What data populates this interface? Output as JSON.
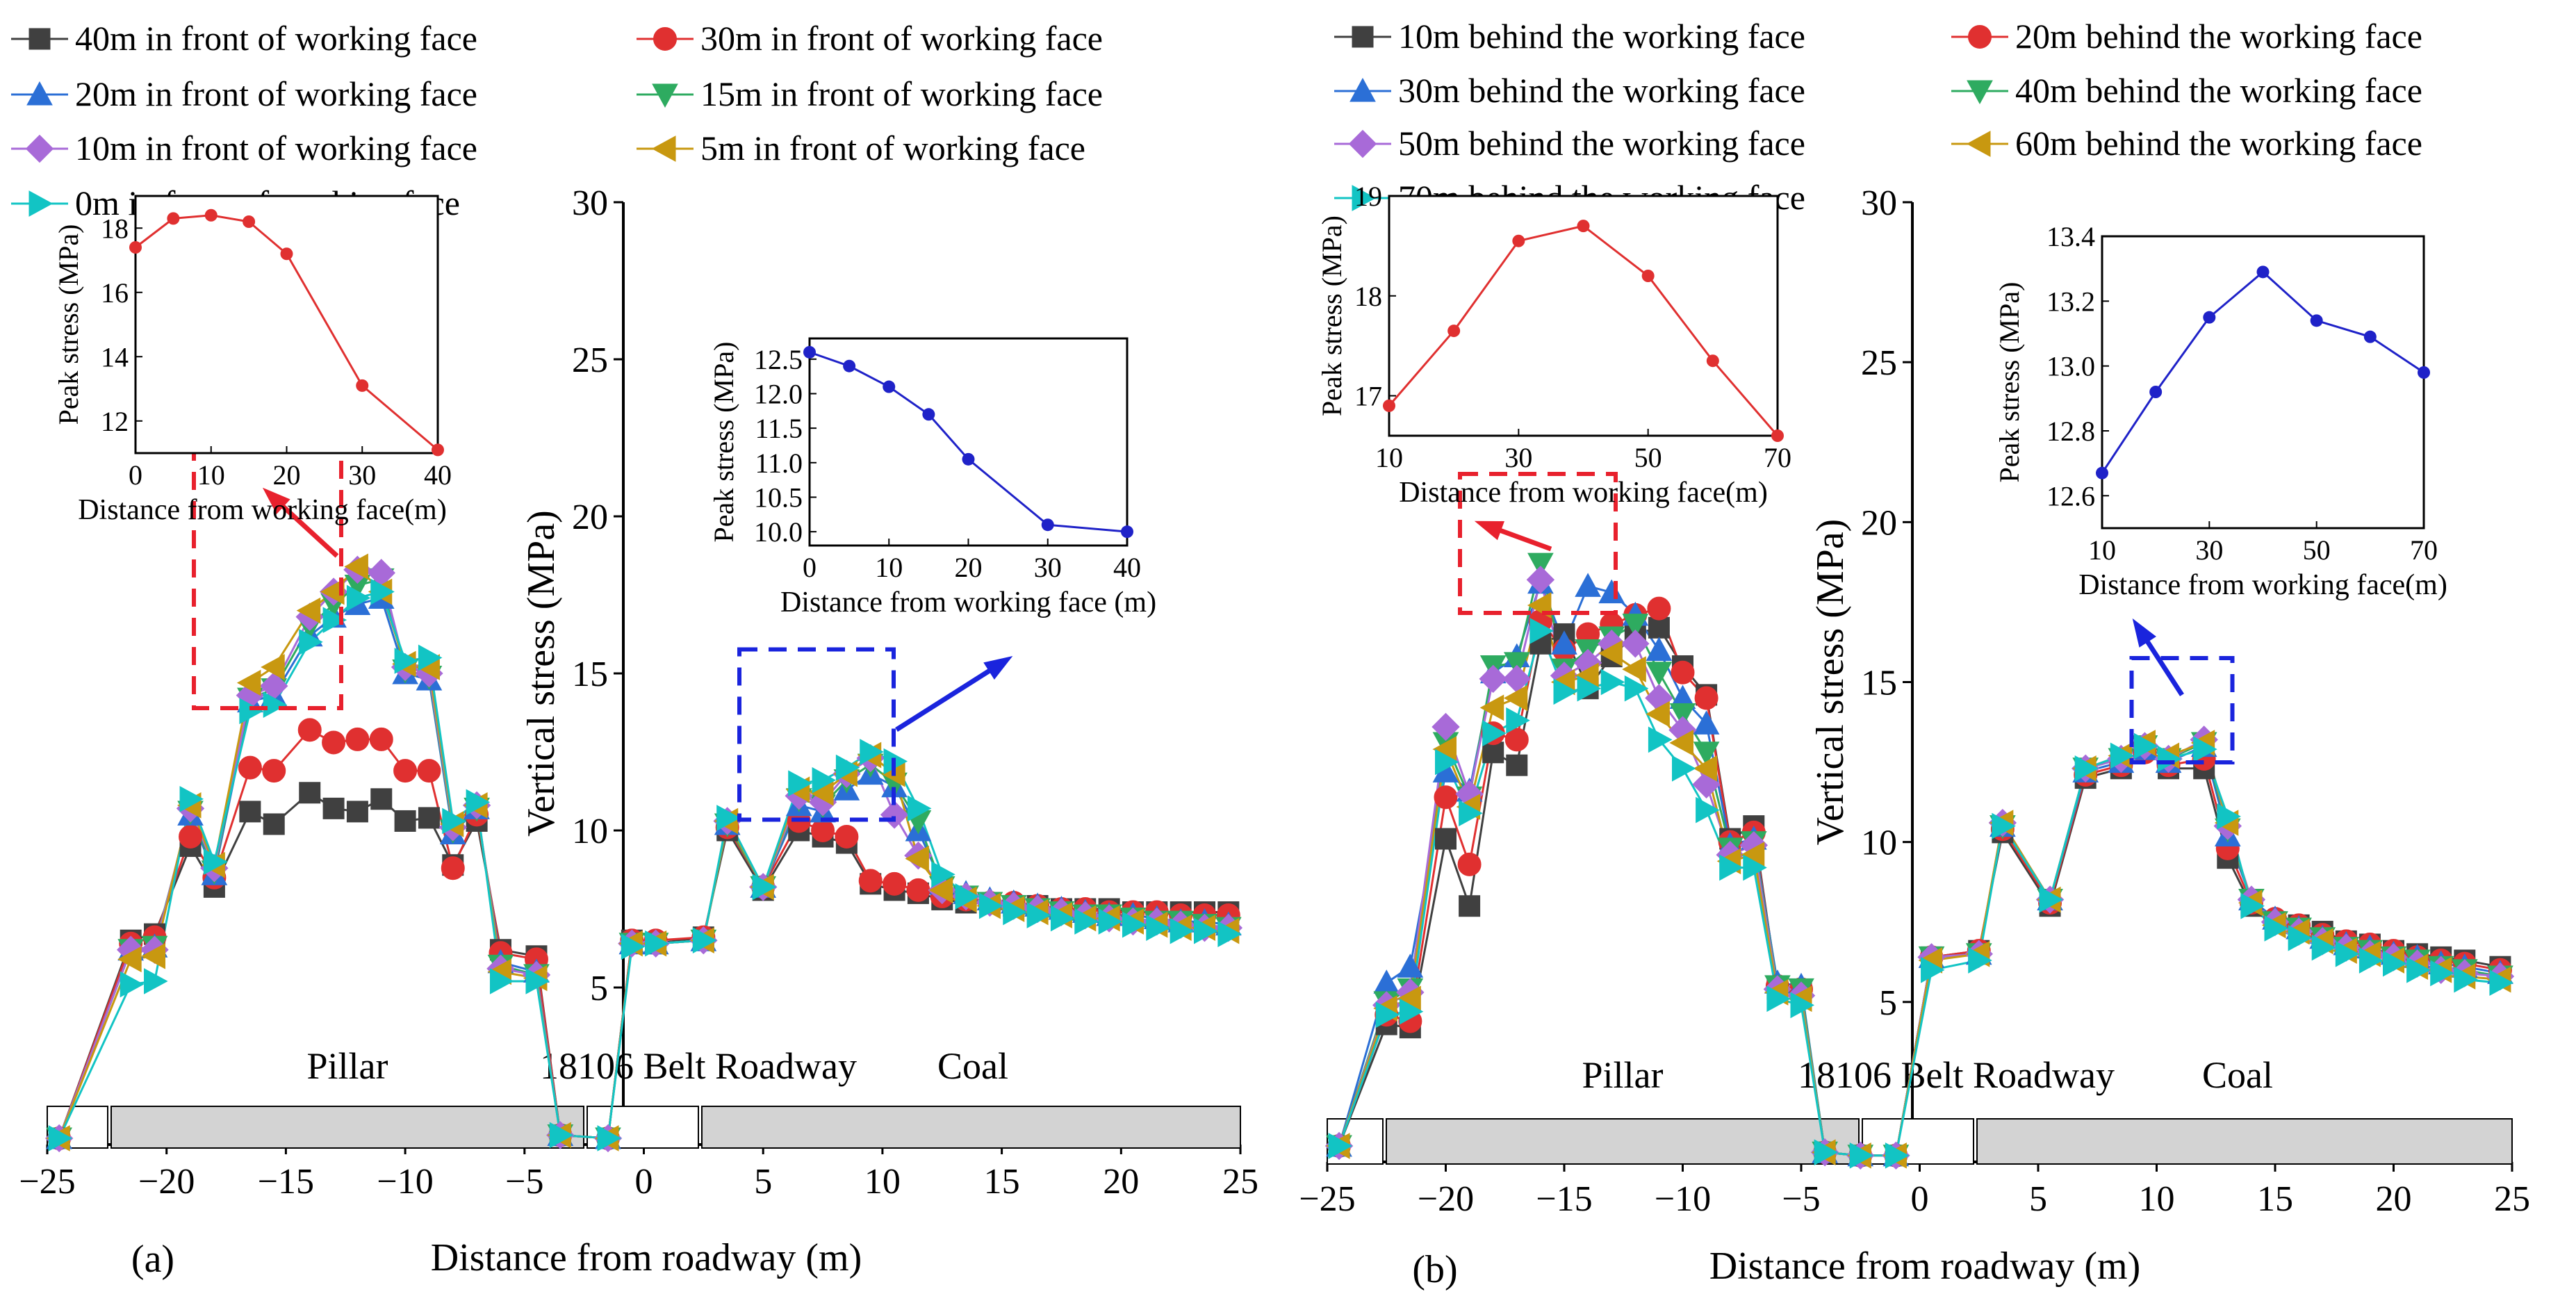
{
  "chart_data": [
    {
      "id": "a",
      "type": "line",
      "panel_label": "(a)",
      "xlabel": "Distance from roadway (m)",
      "ylabel": "Vertical stress (MPa)",
      "xlim": [
        -25,
        25
      ],
      "ylim": [
        0,
        30
      ],
      "xticks": [
        -25,
        -20,
        -15,
        -10,
        -5,
        0,
        5,
        10,
        15,
        20,
        25
      ],
      "yticks": [
        5,
        10,
        15,
        20,
        25,
        30
      ],
      "region_labels": [
        "Pillar",
        "18106 Belt Roadway",
        "Coal"
      ],
      "x": [
        -24.5,
        -21.5,
        -20.5,
        -19,
        -18,
        -16.5,
        -15.5,
        -14,
        -13,
        -12,
        -11,
        -10,
        -9,
        -8,
        -7,
        -6,
        -4.5,
        -3.5,
        -1.5,
        -0.5,
        0.5,
        2.5,
        3.5,
        5,
        6.5,
        7.5,
        8.5,
        9.5,
        10.5,
        11.5,
        12.5,
        13.5,
        14.5,
        15.5,
        16.5,
        17.5,
        18.5,
        19.5,
        20.5,
        21.5,
        22.5,
        23.5,
        24.5
      ],
      "series": [
        {
          "name": "40m in front of  working face",
          "color": "#404040",
          "marker": "square",
          "values": [
            0.2,
            6.5,
            6.7,
            9.5,
            8.2,
            10.6,
            10.2,
            11.2,
            10.7,
            10.6,
            11.0,
            10.3,
            10.4,
            8.9,
            10.3,
            6.2,
            6.0,
            0.3,
            0.2,
            6.5,
            6.4,
            6.6,
            10.0,
            8.1,
            10.0,
            9.8,
            9.6,
            8.3,
            8.1,
            8.0,
            7.8,
            7.7,
            7.7,
            7.6,
            7.6,
            7.5,
            7.5,
            7.5,
            7.4,
            7.4,
            7.4,
            7.4,
            7.4
          ]
        },
        {
          "name": "30m in front of  working face",
          "color": "#e03030",
          "marker": "circle",
          "values": [
            0.2,
            6.4,
            6.6,
            9.8,
            8.5,
            12.0,
            11.9,
            13.2,
            12.8,
            12.9,
            12.9,
            11.9,
            11.9,
            8.8,
            10.5,
            6.1,
            5.9,
            0.3,
            0.2,
            6.5,
            6.5,
            6.6,
            10.1,
            8.2,
            10.3,
            10.0,
            9.8,
            8.4,
            8.3,
            8.1,
            7.9,
            7.8,
            7.7,
            7.7,
            7.6,
            7.5,
            7.5,
            7.4,
            7.4,
            7.4,
            7.3,
            7.3,
            7.3
          ]
        },
        {
          "name": "20m in front of  working face",
          "color": "#2b6fd6",
          "marker": "triangle-up",
          "values": [
            0.2,
            6.2,
            6.3,
            10.5,
            8.6,
            14.1,
            14.3,
            16.2,
            16.8,
            17.2,
            17.4,
            15.0,
            14.8,
            9.9,
            10.7,
            5.8,
            5.5,
            0.3,
            0.2,
            6.4,
            6.4,
            6.5,
            10.2,
            8.2,
            10.8,
            10.6,
            11.3,
            11.8,
            11.4,
            10.0,
            8.3,
            8.0,
            7.8,
            7.7,
            7.6,
            7.5,
            7.4,
            7.3,
            7.3,
            7.2,
            7.1,
            7.1,
            7.0
          ]
        },
        {
          "name": "15m in front of  working face",
          "color": "#2eab60",
          "marker": "triangle-down",
          "values": [
            0.2,
            6.2,
            6.3,
            10.6,
            8.7,
            14.2,
            14.5,
            16.5,
            17.2,
            17.8,
            18.0,
            15.1,
            14.9,
            10.0,
            10.7,
            5.7,
            5.4,
            0.3,
            0.2,
            6.4,
            6.4,
            6.5,
            10.2,
            8.2,
            11.0,
            10.8,
            11.6,
            12.1,
            11.5,
            10.3,
            8.2,
            7.9,
            7.7,
            7.6,
            7.5,
            7.4,
            7.3,
            7.3,
            7.2,
            7.1,
            7.1,
            7.0,
            6.9
          ]
        },
        {
          "name": "10m in front of  working face",
          "color": "#a86ad8",
          "marker": "diamond",
          "values": [
            0.2,
            6.2,
            6.2,
            10.7,
            8.8,
            14.3,
            14.6,
            16.8,
            17.6,
            18.3,
            18.2,
            15.2,
            15.0,
            10.1,
            10.8,
            5.6,
            5.4,
            0.3,
            0.2,
            6.4,
            6.4,
            6.5,
            10.3,
            8.2,
            11.1,
            10.9,
            11.8,
            12.3,
            10.5,
            9.2,
            8.1,
            7.9,
            7.7,
            7.6,
            7.5,
            7.4,
            7.3,
            7.2,
            7.1,
            7.1,
            7.0,
            6.9,
            6.9
          ]
        },
        {
          "name": "5m in front of  working face",
          "color": "#c89810",
          "marker": "triangle-left",
          "values": [
            0.2,
            5.9,
            6.0,
            10.8,
            8.9,
            14.7,
            15.2,
            17.0,
            17.6,
            18.4,
            17.6,
            15.3,
            15.2,
            10.2,
            10.8,
            5.5,
            5.3,
            0.3,
            0.2,
            6.4,
            6.4,
            6.5,
            10.3,
            8.2,
            11.3,
            11.2,
            11.8,
            12.4,
            11.8,
            9.1,
            8.1,
            7.8,
            7.6,
            7.5,
            7.4,
            7.3,
            7.2,
            7.2,
            7.1,
            7.0,
            6.9,
            6.9,
            6.8
          ]
        },
        {
          "name": "0m in front of  working face",
          "color": "#12c4c4",
          "marker": "triangle-right",
          "values": [
            0.2,
            5.1,
            5.2,
            11.0,
            9.0,
            13.8,
            14.0,
            16.0,
            16.7,
            17.4,
            17.6,
            15.4,
            15.5,
            10.3,
            10.9,
            5.2,
            5.2,
            0.3,
            0.2,
            6.3,
            6.4,
            6.5,
            10.4,
            8.2,
            11.5,
            11.6,
            12.0,
            12.5,
            12.2,
            10.7,
            8.6,
            7.9,
            7.6,
            7.4,
            7.3,
            7.2,
            7.1,
            7.1,
            7.0,
            6.9,
            6.8,
            6.8,
            6.7
          ]
        }
      ],
      "insets": [
        {
          "xlabel": "Distance from working face(m)",
          "ylabel": "Peak stress (MPa)",
          "color": "#e03030",
          "xlim": [
            0,
            40
          ],
          "ylim": [
            11,
            19
          ],
          "xticks": [
            0,
            10,
            20,
            30,
            40
          ],
          "yticks": [
            12,
            14,
            16,
            18
          ],
          "x": [
            0,
            5,
            10,
            15,
            20,
            30,
            40
          ],
          "values": [
            17.4,
            18.3,
            18.4,
            18.2,
            17.2,
            13.1,
            11.1
          ]
        },
        {
          "xlabel": "Distance from working face (m)",
          "ylabel": "Peak stress (MPa)",
          "color": "#1f22c8",
          "xlim": [
            0,
            40
          ],
          "ylim": [
            9.8,
            12.8
          ],
          "xticks": [
            0,
            10,
            20,
            30,
            40
          ],
          "yticks": [
            10.0,
            10.5,
            11.0,
            11.5,
            12.0,
            12.5
          ],
          "x": [
            0,
            5,
            10,
            15,
            20,
            30,
            40
          ],
          "values": [
            12.6,
            12.4,
            12.1,
            11.7,
            11.05,
            10.1,
            10.0
          ]
        }
      ]
    },
    {
      "id": "b",
      "type": "line",
      "panel_label": "(b)",
      "xlabel": "Distance from roadway (m)",
      "ylabel": "Vertical stress (MPa)",
      "xlim": [
        -25,
        25
      ],
      "ylim": [
        0,
        30
      ],
      "xticks": [
        -25,
        -20,
        -15,
        -10,
        -5,
        0,
        5,
        10,
        15,
        20,
        25
      ],
      "yticks": [
        5,
        10,
        15,
        20,
        25,
        30
      ],
      "region_labels": [
        "Pillar",
        "18106 Belt Roadway",
        "Coal"
      ],
      "x": [
        -24.5,
        -22.5,
        -21.5,
        -20,
        -19,
        -18,
        -17,
        -16,
        -15,
        -14,
        -13,
        -12,
        -11,
        -10,
        -9,
        -8,
        -7,
        -6,
        -5,
        -4,
        -2.5,
        -1,
        0.5,
        2.5,
        3.5,
        5.5,
        7,
        8.5,
        9.5,
        10.5,
        12,
        13,
        14,
        15,
        16,
        17,
        18,
        19,
        20,
        21,
        22,
        23,
        24.5
      ],
      "series": [
        {
          "name": "10m behind the working face",
          "color": "#404040",
          "marker": "square",
          "values": [
            0.5,
            4.3,
            4.2,
            10.1,
            8.0,
            12.8,
            12.4,
            16.2,
            16.5,
            14.8,
            15.8,
            16.5,
            16.7,
            15.5,
            14.6,
            10.1,
            10.5,
            5.4,
            5.3,
            0.3,
            0.2,
            0.2,
            6.4,
            6.6,
            10.3,
            8.0,
            12.0,
            12.3,
            12.9,
            12.3,
            12.3,
            9.5,
            8.0,
            7.5,
            7.4,
            7.2,
            6.9,
            6.8,
            6.6,
            6.5,
            6.4,
            6.3,
            6.1
          ]
        },
        {
          "name": "20m behind the working face",
          "color": "#e03030",
          "marker": "circle",
          "values": [
            0.5,
            4.6,
            4.4,
            11.4,
            9.3,
            13.4,
            13.2,
            16.9,
            16.0,
            16.5,
            16.8,
            17.1,
            17.3,
            15.3,
            14.5,
            10.0,
            10.3,
            5.5,
            5.4,
            0.3,
            0.2,
            0.2,
            6.4,
            6.6,
            10.4,
            8.1,
            12.1,
            12.4,
            12.8,
            12.4,
            12.6,
            9.8,
            8.1,
            7.6,
            7.4,
            7.1,
            6.9,
            6.8,
            6.6,
            6.4,
            6.3,
            6.2,
            6.0
          ]
        },
        {
          "name": "30m behind the working face",
          "color": "#2b6fd6",
          "marker": "triangle-up",
          "values": [
            0.5,
            5.6,
            6.1,
            12.2,
            11.6,
            15.3,
            15.8,
            18.1,
            16.2,
            18.0,
            17.8,
            17.1,
            16.0,
            14.5,
            13.7,
            9.9,
            10.1,
            5.6,
            5.5,
            0.3,
            0.2,
            0.2,
            6.4,
            6.5,
            10.5,
            8.2,
            12.2,
            12.5,
            12.9,
            12.5,
            13.0,
            10.2,
            8.2,
            7.6,
            7.3,
            7.0,
            6.8,
            6.7,
            6.5,
            6.4,
            6.2,
            6.1,
            5.9
          ]
        },
        {
          "name": "40m behind the working face",
          "color": "#2eab60",
          "marker": "triangle-down",
          "values": [
            0.5,
            5.0,
            5.4,
            13.1,
            11.4,
            15.5,
            15.6,
            18.7,
            15.4,
            16.0,
            16.4,
            16.8,
            15.3,
            14.0,
            12.8,
            9.8,
            10.0,
            5.5,
            5.4,
            0.3,
            0.2,
            0.2,
            6.4,
            6.5,
            10.5,
            8.2,
            12.3,
            12.6,
            13.0,
            12.6,
            13.1,
            10.4,
            8.2,
            7.5,
            7.3,
            7.0,
            6.7,
            6.6,
            6.4,
            6.3,
            6.1,
            6.0,
            5.8
          ]
        },
        {
          "name": "50m behind the working face",
          "color": "#a86ad8",
          "marker": "diamond",
          "values": [
            0.5,
            4.9,
            5.3,
            13.6,
            11.5,
            15.1,
            15.1,
            18.2,
            15.2,
            15.6,
            16.2,
            16.2,
            14.5,
            13.5,
            11.8,
            9.6,
            9.9,
            5.4,
            5.2,
            0.3,
            0.2,
            0.2,
            6.4,
            6.5,
            10.6,
            8.2,
            12.3,
            12.6,
            13.0,
            12.6,
            13.2,
            10.5,
            8.2,
            7.5,
            7.2,
            6.9,
            6.7,
            6.5,
            6.4,
            6.2,
            6.0,
            5.9,
            5.8
          ]
        },
        {
          "name": "60m behind the working face",
          "color": "#c89810",
          "marker": "triangle-left",
          "values": [
            0.5,
            4.8,
            5.1,
            12.9,
            11.1,
            14.2,
            14.5,
            17.4,
            15.0,
            15.2,
            15.9,
            15.4,
            14.0,
            13.1,
            12.3,
            9.4,
            9.6,
            5.3,
            5.1,
            0.3,
            0.2,
            0.2,
            6.3,
            6.5,
            10.6,
            8.2,
            12.3,
            12.7,
            13.1,
            12.7,
            13.1,
            10.6,
            8.1,
            7.4,
            7.2,
            6.9,
            6.6,
            6.5,
            6.3,
            6.1,
            6.0,
            5.8,
            5.7
          ]
        },
        {
          "name": "70m behind the working face",
          "color": "#12c4c4",
          "marker": "triangle-right",
          "values": [
            0.5,
            4.6,
            4.7,
            12.5,
            10.9,
            13.4,
            13.8,
            16.6,
            14.7,
            14.8,
            15.0,
            14.8,
            13.2,
            12.3,
            11.0,
            9.2,
            9.2,
            5.1,
            4.9,
            0.3,
            0.2,
            0.2,
            6.0,
            6.3,
            10.5,
            8.2,
            12.3,
            12.7,
            13.0,
            12.6,
            12.9,
            10.8,
            8.0,
            7.3,
            7.0,
            6.7,
            6.5,
            6.3,
            6.2,
            6.0,
            5.9,
            5.7,
            5.6
          ]
        }
      ],
      "insets": [
        {
          "xlabel": "Distance from working face(m)",
          "ylabel": "Peak stress (MPa)",
          "color": "#e03030",
          "xlim": [
            10,
            70
          ],
          "ylim": [
            16.6,
            19.0
          ],
          "xticks": [
            10,
            30,
            50,
            70
          ],
          "yticks": [
            17,
            18,
            19
          ],
          "x": [
            10,
            20,
            30,
            40,
            50,
            60,
            70
          ],
          "values": [
            16.9,
            17.65,
            18.55,
            18.7,
            18.2,
            17.35,
            16.6
          ]
        },
        {
          "xlabel": "Distance from working face(m)",
          "ylabel": "Peak stress (MPa)",
          "color": "#1f22c8",
          "xlim": [
            10,
            70
          ],
          "ylim": [
            12.5,
            13.4
          ],
          "xticks": [
            10,
            30,
            50,
            70
          ],
          "yticks": [
            12.6,
            12.8,
            13.0,
            13.2,
            13.4
          ],
          "x": [
            10,
            20,
            30,
            40,
            50,
            60,
            70
          ],
          "values": [
            12.67,
            12.92,
            13.15,
            13.29,
            13.14,
            13.09,
            12.98
          ]
        }
      ]
    }
  ]
}
